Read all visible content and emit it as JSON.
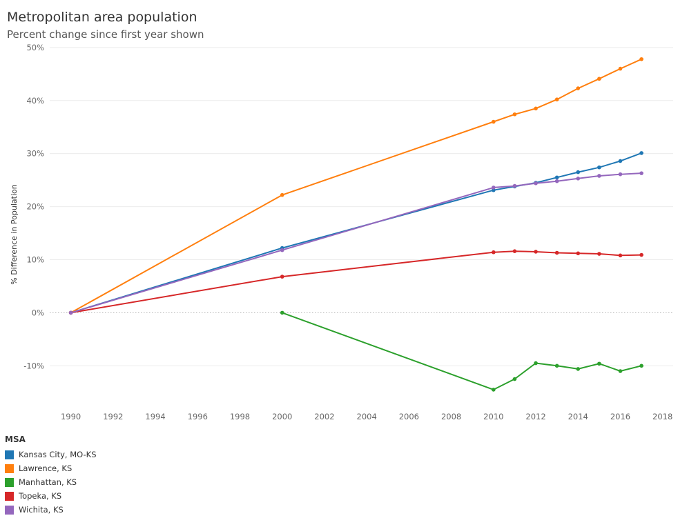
{
  "page": {
    "title": "Metropolitan area population",
    "subtitle": "Percent change since first year shown"
  },
  "legend": {
    "title": "MSA"
  },
  "chart_data": {
    "type": "line",
    "title": "Metropolitan area population",
    "subtitle": "Percent change since first year shown",
    "xlabel": "",
    "ylabel": "% Difference in Population",
    "xlim": [
      1989,
      2018.5
    ],
    "ylim": [
      -17.5,
      50.5
    ],
    "x_ticks": [
      1990,
      1992,
      1994,
      1996,
      1998,
      2000,
      2002,
      2004,
      2006,
      2008,
      2010,
      2012,
      2014,
      2016,
      2018
    ],
    "y_ticks": [
      -10,
      0,
      10,
      20,
      30,
      40,
      50
    ],
    "y_tick_labels": [
      "-10%",
      "0%",
      "10%",
      "20%",
      "30%",
      "40%",
      "50%"
    ],
    "grid": true,
    "zero_line": "dotted",
    "legend_position": "bottom-left",
    "series": [
      {
        "name": "Kansas City, MO-KS",
        "color": "#1f77b4",
        "x": [
          1990,
          2000,
          2010,
          2011,
          2012,
          2013,
          2014,
          2015,
          2016,
          2017
        ],
        "y": [
          0,
          12.2,
          23.1,
          23.8,
          24.5,
          25.5,
          26.5,
          27.4,
          28.6,
          30.1
        ]
      },
      {
        "name": "Lawrence, KS",
        "color": "#ff7f0e",
        "x": [
          1990,
          2000,
          2010,
          2011,
          2012,
          2013,
          2014,
          2015,
          2016,
          2017
        ],
        "y": [
          0,
          22.2,
          36.0,
          37.4,
          38.5,
          40.2,
          42.3,
          44.1,
          46.0,
          47.8
        ]
      },
      {
        "name": "Manhattan, KS",
        "color": "#2ca02c",
        "x": [
          2000,
          2010,
          2011,
          2012,
          2013,
          2014,
          2015,
          2016,
          2017
        ],
        "y": [
          0,
          -14.5,
          -12.5,
          -9.5,
          -10.0,
          -10.6,
          -9.6,
          -11.0,
          -10.0
        ]
      },
      {
        "name": "Topeka, KS",
        "color": "#d62728",
        "x": [
          1990,
          2000,
          2010,
          2011,
          2012,
          2013,
          2014,
          2015,
          2016,
          2017
        ],
        "y": [
          0,
          6.8,
          11.4,
          11.6,
          11.5,
          11.3,
          11.2,
          11.1,
          10.8,
          10.9
        ]
      },
      {
        "name": "Wichita, KS",
        "color": "#9467bd",
        "x": [
          1990,
          2000,
          2010,
          2011,
          2012,
          2013,
          2014,
          2015,
          2016,
          2017
        ],
        "y": [
          0,
          11.8,
          23.6,
          23.9,
          24.4,
          24.8,
          25.3,
          25.8,
          26.1,
          26.3
        ]
      }
    ]
  }
}
